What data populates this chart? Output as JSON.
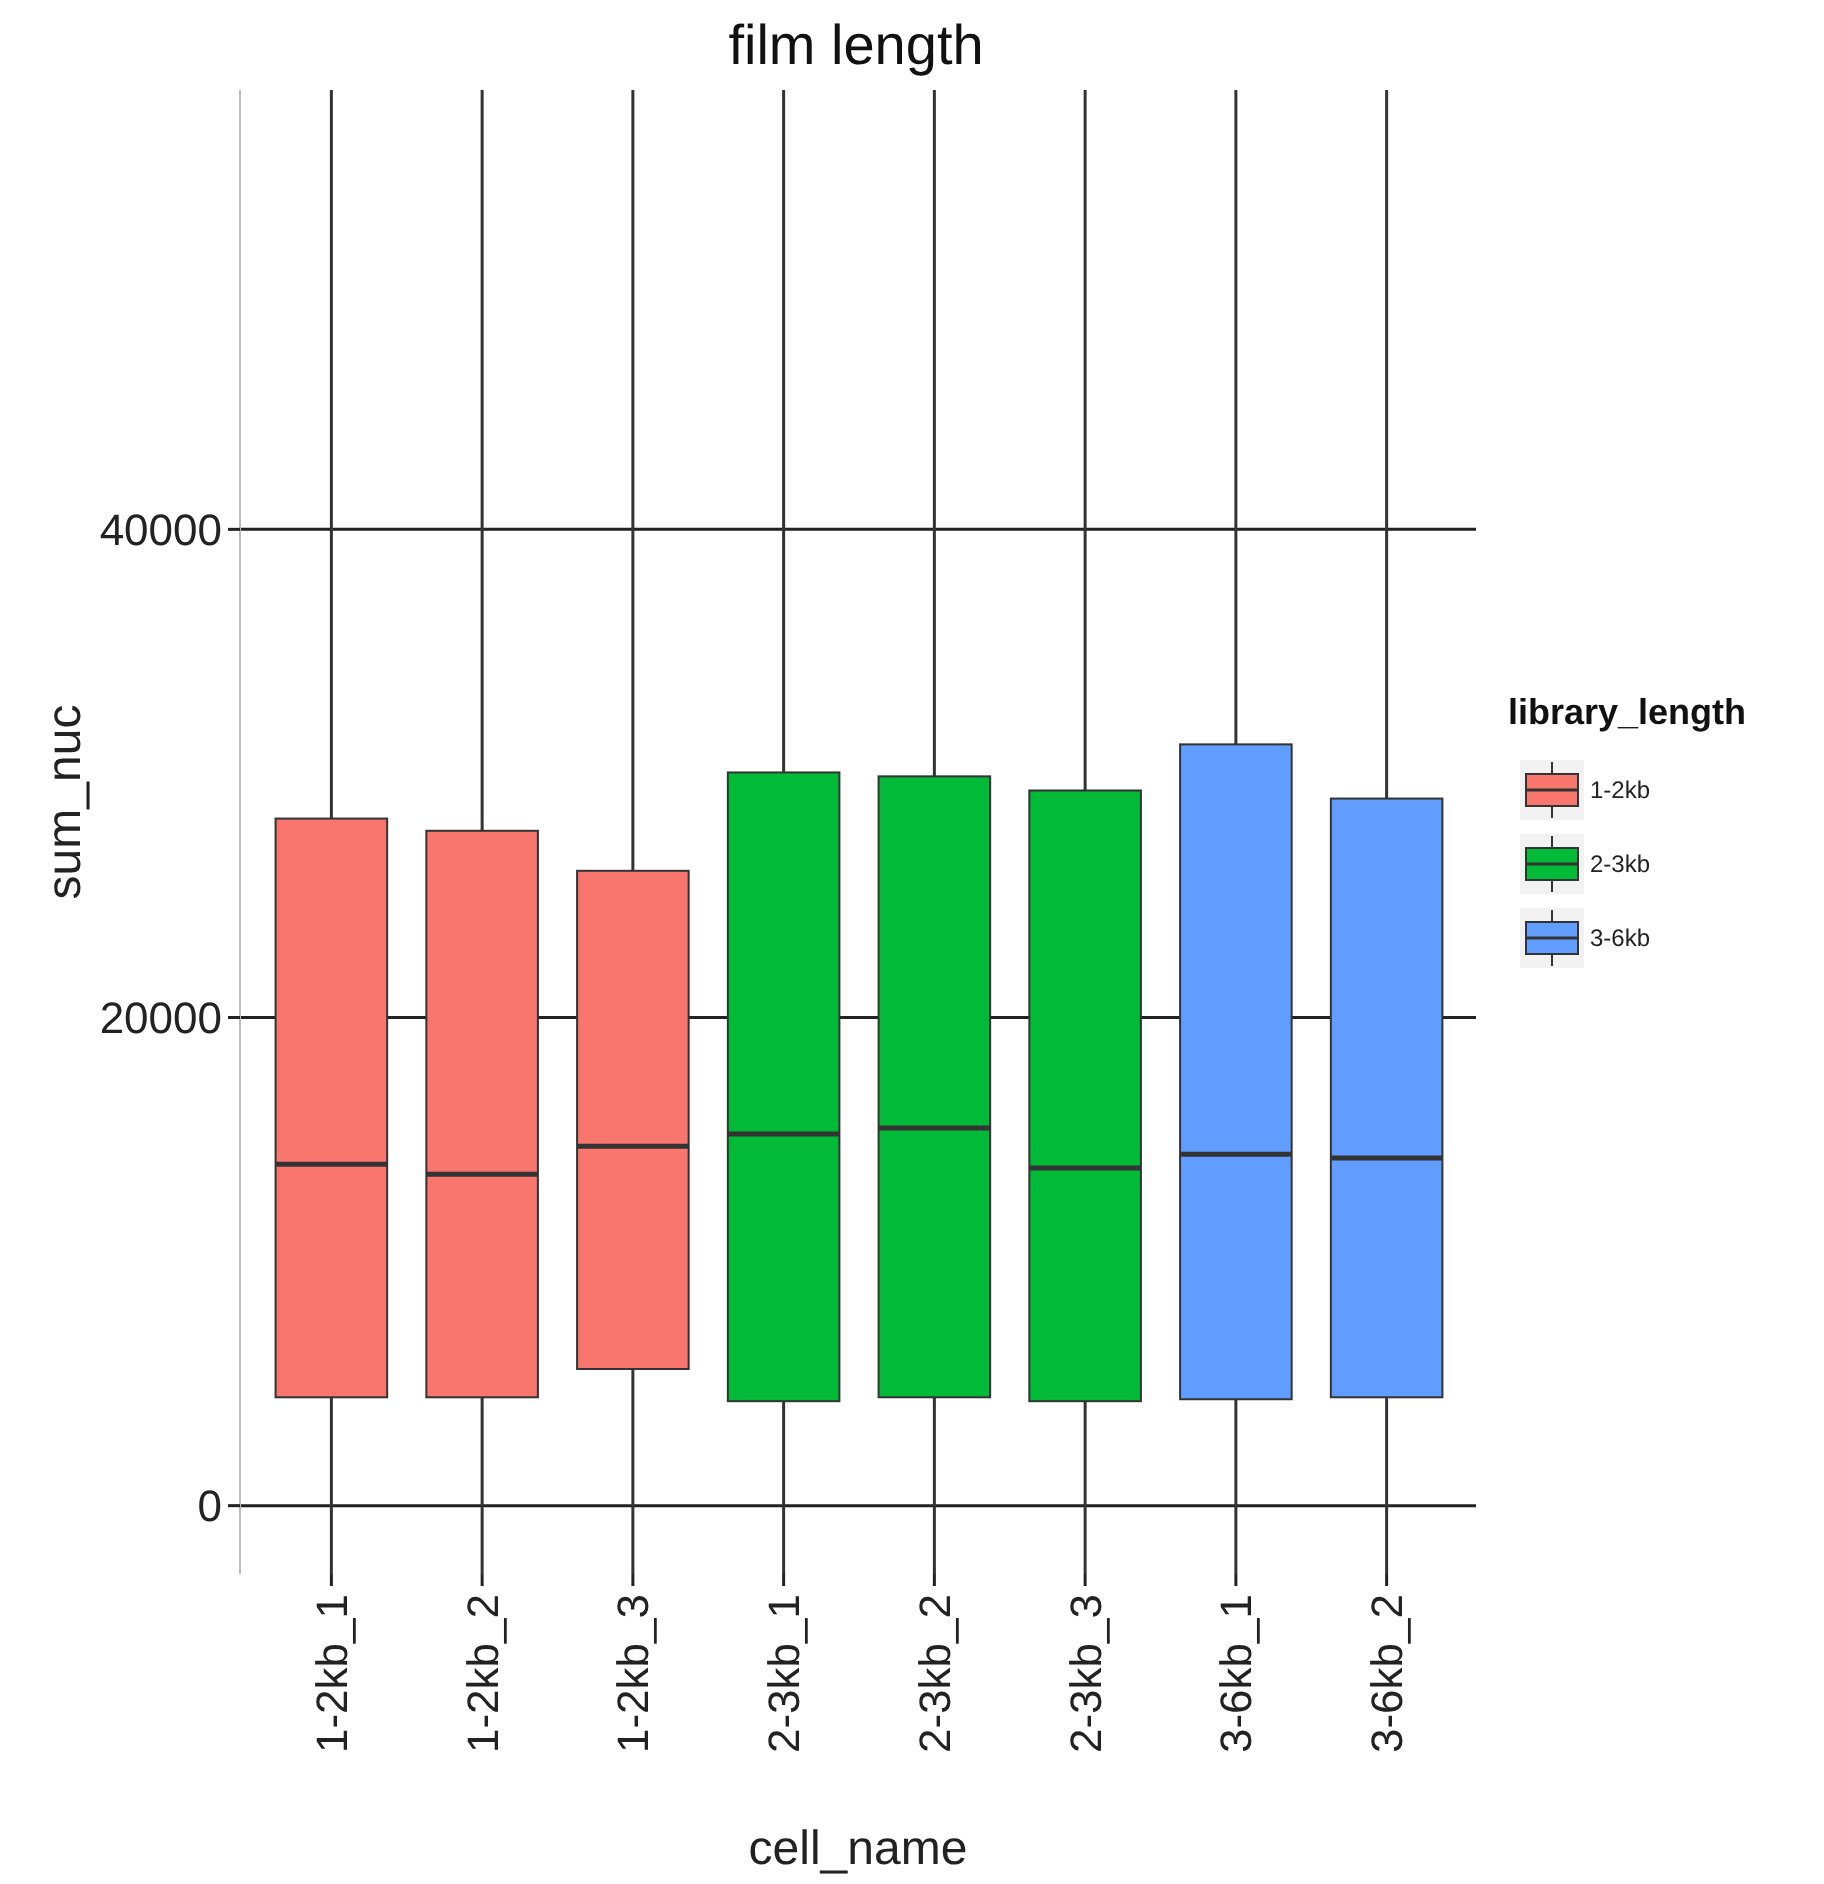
{
  "chart_data": {
    "type": "box",
    "title": "film length",
    "xlabel": "cell_name",
    "ylabel": "sum_nuc",
    "legend_title": "library_length",
    "categories": [
      "1-2kb_1",
      "1-2kb_2",
      "1-2kb_3",
      "2-3kb_1",
      "2-3kb_2",
      "2-3kb_3",
      "3-6kb_1",
      "3-6kb_2"
    ],
    "ylim": [
      -2800,
      58000
    ],
    "yticks": [
      0,
      20000,
      40000
    ],
    "grid": "y",
    "legend": "right",
    "series": [
      {
        "name": "1-2kb",
        "color": "#f8766d",
        "boxes": [
          {
            "low": -2800,
            "q1": 4440,
            "median": 13990,
            "q3": 28150,
            "high": 58000
          },
          {
            "low": -2800,
            "q1": 4440,
            "median": 13580,
            "q3": 27650,
            "high": 58000
          },
          {
            "low": -2800,
            "q1": 5600,
            "median": 14730,
            "q3": 26010,
            "high": 58000
          },
          null,
          null,
          null,
          null,
          null
        ]
      },
      {
        "name": "2-3kb",
        "color": "#00ba38",
        "boxes": [
          null,
          null,
          null,
          {
            "low": -2800,
            "q1": 4280,
            "median": 15230,
            "q3": 30040,
            "high": 58000
          },
          {
            "low": -2800,
            "q1": 4440,
            "median": 15470,
            "q3": 29880,
            "high": 58000
          },
          {
            "low": -2800,
            "q1": 4280,
            "median": 13830,
            "q3": 29300,
            "high": 58000
          },
          null,
          null
        ]
      },
      {
        "name": "3-6kb",
        "color": "#619cff",
        "boxes": [
          null,
          null,
          null,
          null,
          null,
          null,
          {
            "low": -2800,
            "q1": 4360,
            "median": 14400,
            "q3": 31190,
            "high": 58000
          },
          {
            "low": -2800,
            "q1": 4440,
            "median": 14240,
            "q3": 28970,
            "high": 58000
          }
        ]
      }
    ]
  }
}
